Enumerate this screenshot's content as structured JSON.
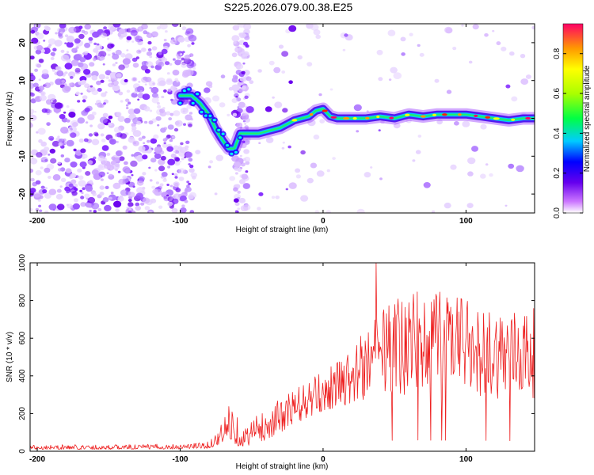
{
  "title": "S225.2026.079.00.38.E25",
  "colors": {
    "snr_line": "#ee2222",
    "frame": "#000000"
  },
  "chart_data": [
    {
      "type": "heatmap",
      "name": "spectrogram",
      "xlabel": "Height of straight line (km)",
      "ylabel": "Frequency (Hz)",
      "xlim": [
        -205,
        148
      ],
      "ylim": [
        -25,
        25
      ],
      "xticks": [
        -200,
        -100,
        0,
        100
      ],
      "yticks": [
        -20,
        -10,
        0,
        10,
        20
      ],
      "noise_region_km": [
        -205,
        -90
      ],
      "noise_strip_km": [
        -62,
        -53
      ],
      "signal_track": {
        "x_km": [
          -100,
          -92,
          -86,
          -80,
          -75,
          -70,
          -66,
          -62,
          -58,
          -55,
          -50,
          -45,
          -40,
          -35,
          -30,
          -25,
          -20,
          -15,
          -10,
          -5,
          0,
          5,
          10,
          20,
          30,
          40,
          50,
          60,
          70,
          80,
          90,
          100,
          110,
          120,
          130,
          140,
          148
        ],
        "freq_hz": [
          6,
          6,
          4,
          1,
          -3,
          -6,
          -8,
          -8,
          -4,
          -4,
          -4,
          -4,
          -3.5,
          -3,
          -2.5,
          -1.5,
          -0.5,
          0,
          0.5,
          2,
          2.5,
          0.5,
          0,
          0,
          0,
          0.5,
          0,
          1,
          0.5,
          1,
          1,
          1,
          0.5,
          0,
          -0.5,
          0,
          0
        ]
      },
      "colorbar": {
        "label": "Normalized spectral amplitude",
        "range": [
          0.0,
          0.95
        ],
        "ticks": [
          "0.0",
          "0.2",
          "0.4",
          "0.6",
          "0.8"
        ],
        "tick_values": [
          0.0,
          0.2,
          0.4,
          0.6,
          0.8
        ]
      }
    },
    {
      "type": "line",
      "name": "snr",
      "xlabel": "Height of straight line (km)",
      "ylabel": "SNR (10 * v/v)",
      "xlim": [
        -205,
        148
      ],
      "ylim": [
        0,
        1000
      ],
      "xticks": [
        -200,
        -100,
        0,
        100
      ],
      "yticks": [
        0,
        200,
        400,
        600,
        800,
        1000
      ],
      "envelope": {
        "x_km": [
          -205,
          -150,
          -100,
          -80,
          -70,
          -65,
          -60,
          -55,
          -50,
          -40,
          -30,
          -20,
          -10,
          0,
          10,
          20,
          30,
          40,
          60,
          80,
          100,
          120,
          148
        ],
        "lower": [
          10,
          10,
          12,
          15,
          40,
          60,
          30,
          20,
          40,
          60,
          100,
          140,
          180,
          210,
          230,
          250,
          270,
          280,
          300,
          290,
          300,
          280,
          280
        ],
        "upper": [
          35,
          35,
          40,
          50,
          160,
          290,
          190,
          120,
          180,
          220,
          280,
          340,
          380,
          420,
          480,
          560,
          650,
          750,
          860,
          880,
          800,
          760,
          760
        ]
      },
      "peak": {
        "x_km": 37,
        "y": 1000
      }
    }
  ]
}
